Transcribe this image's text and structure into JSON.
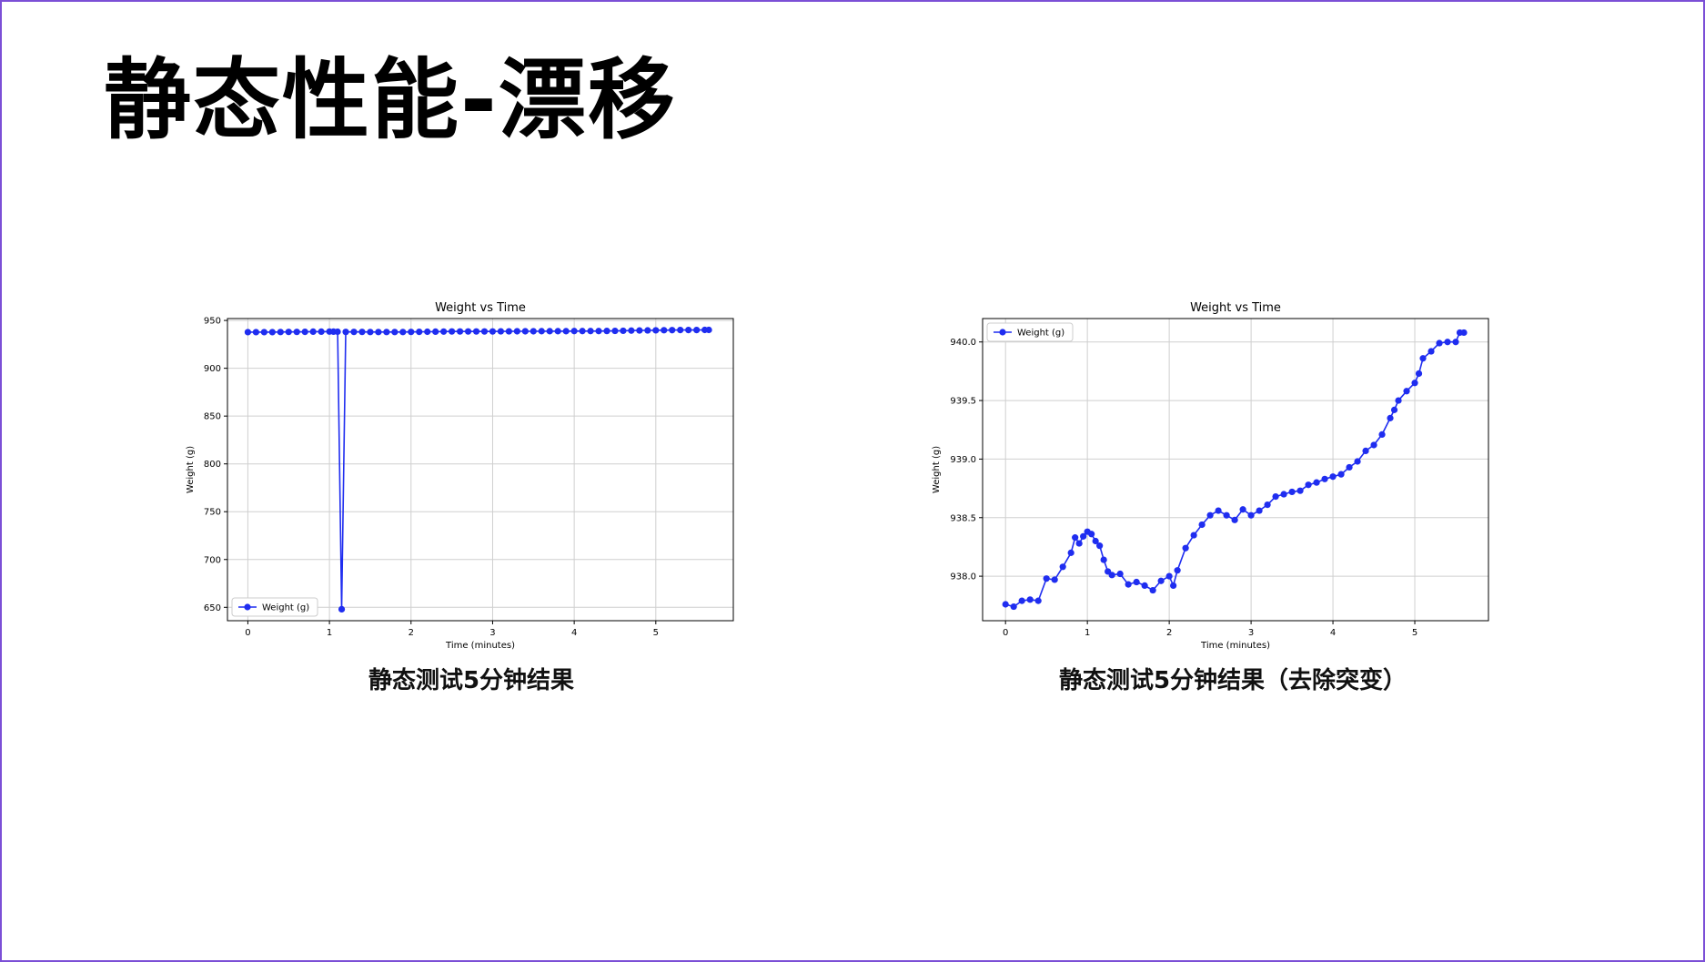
{
  "slide": {
    "title": "静态性能-漂移",
    "captions": [
      "静态测试5分钟结果",
      "静态测试5分钟结果（去除突变）"
    ]
  },
  "colors": {
    "series": "#1f2df0",
    "grid": "#cfcfcf",
    "border": "#7b4fd6"
  },
  "chart_data": [
    {
      "type": "line",
      "title": "Weight vs Time",
      "xlabel": "Time (minutes)",
      "ylabel": "Weight (g)",
      "xlim": [
        -0.25,
        5.95
      ],
      "ylim": [
        636,
        952
      ],
      "xticks": [
        0,
        1,
        2,
        3,
        4,
        5
      ],
      "yticks": [
        650,
        700,
        750,
        800,
        850,
        900,
        950
      ],
      "grid": true,
      "legend": "lower-left",
      "series": [
        {
          "name": "Weight (g)",
          "x": [
            0,
            0.1,
            0.2,
            0.3,
            0.4,
            0.5,
            0.6,
            0.7,
            0.8,
            0.9,
            1.0,
            1.05,
            1.1,
            1.15,
            1.2,
            1.3,
            1.4,
            1.5,
            1.6,
            1.7,
            1.8,
            1.9,
            2.0,
            2.1,
            2.2,
            2.3,
            2.4,
            2.5,
            2.6,
            2.7,
            2.8,
            2.9,
            3.0,
            3.1,
            3.2,
            3.3,
            3.4,
            3.5,
            3.6,
            3.7,
            3.8,
            3.9,
            4.0,
            4.1,
            4.2,
            4.3,
            4.4,
            4.5,
            4.6,
            4.7,
            4.8,
            4.9,
            5.0,
            5.1,
            5.2,
            5.3,
            5.4,
            5.5,
            5.6,
            5.65
          ],
          "y": [
            937.8,
            937.8,
            937.8,
            937.8,
            937.9,
            938.0,
            938.0,
            938.1,
            938.3,
            938.3,
            938.4,
            938.3,
            938.2,
            648,
            938.0,
            938.0,
            938.0,
            937.9,
            937.9,
            937.9,
            937.9,
            937.9,
            938.0,
            938.1,
            938.2,
            938.3,
            938.4,
            938.5,
            938.5,
            938.5,
            938.5,
            938.5,
            938.5,
            938.6,
            938.6,
            938.7,
            938.7,
            938.7,
            938.8,
            938.8,
            938.8,
            938.8,
            938.9,
            938.9,
            938.9,
            938.9,
            939.0,
            939.1,
            939.2,
            939.4,
            939.5,
            939.6,
            939.7,
            939.8,
            939.9,
            940.0,
            940.0,
            940.0,
            940.1,
            940.1
          ]
        }
      ]
    },
    {
      "type": "line",
      "title": "Weight vs Time",
      "xlabel": "Time (minutes)",
      "ylabel": "Weight (g)",
      "xlim": [
        -0.28,
        5.9
      ],
      "ylim": [
        937.62,
        940.2
      ],
      "xticks": [
        0,
        1,
        2,
        3,
        4,
        5
      ],
      "yticks": [
        938.0,
        938.5,
        939.0,
        939.5,
        940.0
      ],
      "grid": true,
      "legend": "upper-left",
      "series": [
        {
          "name": "Weight (g)",
          "x": [
            0,
            0.1,
            0.2,
            0.3,
            0.4,
            0.5,
            0.6,
            0.7,
            0.8,
            0.85,
            0.9,
            0.95,
            1.0,
            1.05,
            1.1,
            1.15,
            1.2,
            1.25,
            1.3,
            1.4,
            1.5,
            1.6,
            1.7,
            1.8,
            1.9,
            2.0,
            2.05,
            2.1,
            2.2,
            2.3,
            2.4,
            2.5,
            2.6,
            2.7,
            2.8,
            2.9,
            3.0,
            3.1,
            3.2,
            3.3,
            3.4,
            3.5,
            3.6,
            3.7,
            3.8,
            3.9,
            4.0,
            4.1,
            4.2,
            4.3,
            4.4,
            4.5,
            4.6,
            4.7,
            4.75,
            4.8,
            4.9,
            5.0,
            5.05,
            5.1,
            5.2,
            5.3,
            5.4,
            5.5,
            5.55,
            5.6
          ],
          "y": [
            937.76,
            937.74,
            937.79,
            937.8,
            937.79,
            937.98,
            937.97,
            938.08,
            938.2,
            938.33,
            938.28,
            938.34,
            938.38,
            938.36,
            938.3,
            938.26,
            938.14,
            938.04,
            938.01,
            938.02,
            937.93,
            937.95,
            937.92,
            937.88,
            937.96,
            938.0,
            937.92,
            938.05,
            938.24,
            938.35,
            938.44,
            938.52,
            938.56,
            938.52,
            938.48,
            938.57,
            938.52,
            938.56,
            938.61,
            938.68,
            938.7,
            938.72,
            938.73,
            938.78,
            938.8,
            938.83,
            938.85,
            938.87,
            938.93,
            938.98,
            939.07,
            939.12,
            939.21,
            939.35,
            939.42,
            939.5,
            939.58,
            939.65,
            939.73,
            939.86,
            939.92,
            939.99,
            940.0,
            940.0,
            940.08,
            940.08
          ]
        }
      ]
    }
  ]
}
